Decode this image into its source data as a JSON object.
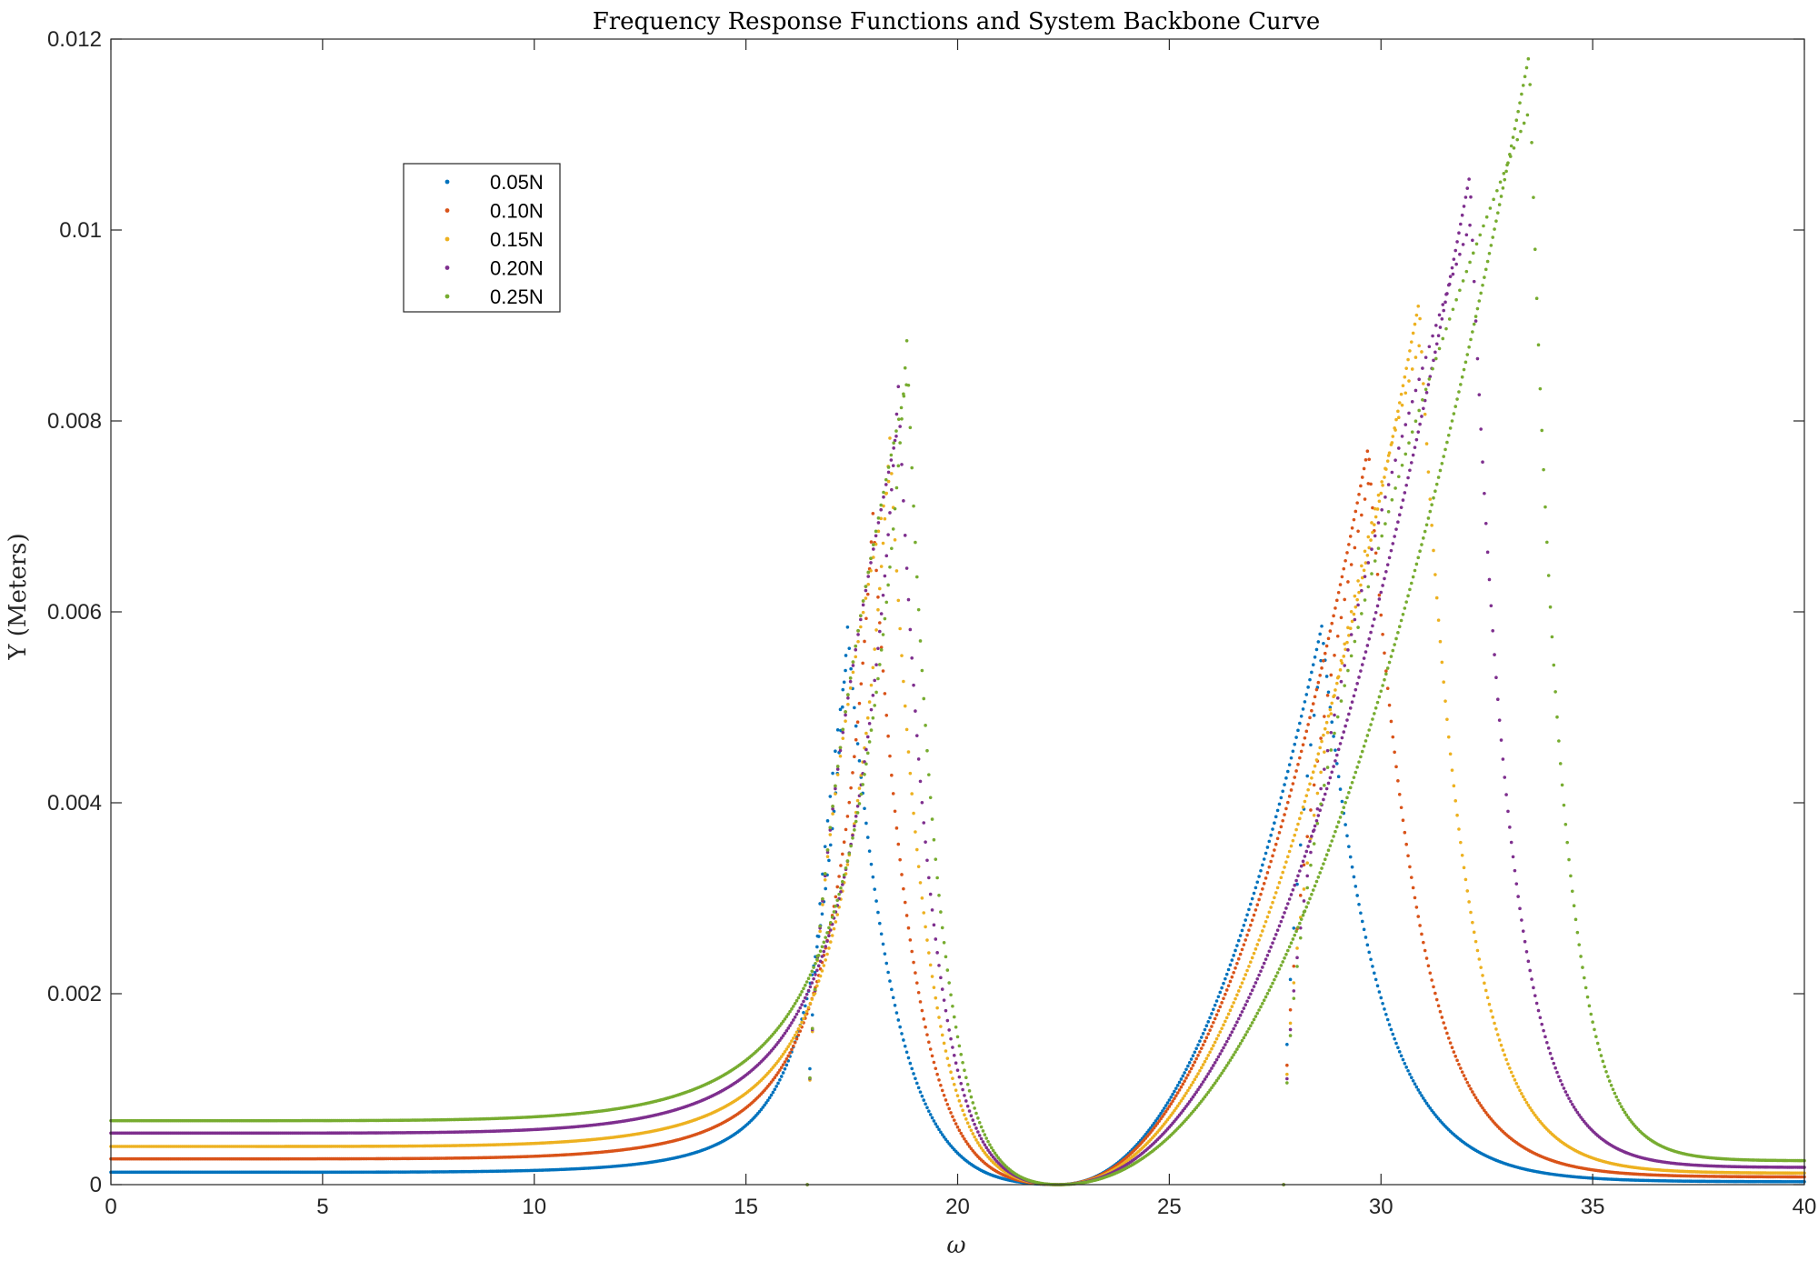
{
  "chart_data": {
    "type": "scatter",
    "title": "Frequency Response Functions and System Backbone Curve",
    "xlabel": "ω",
    "ylabel": "Y (Meters)",
    "xlim": [
      0,
      40
    ],
    "ylim": [
      0,
      0.012
    ],
    "xticks": [
      0,
      5,
      10,
      15,
      20,
      25,
      30,
      35,
      40
    ],
    "xtick_labels": [
      "0",
      "5",
      "10",
      "15",
      "20",
      "25",
      "30",
      "35",
      "40"
    ],
    "yticks": [
      0,
      0.002,
      0.004,
      0.006,
      0.008,
      0.01,
      0.012
    ],
    "ytick_labels": [
      "0",
      "0.002",
      "0.004",
      "0.006",
      "0.008",
      "0.01",
      "0.012"
    ],
    "grid": false,
    "legend_position": "upper-left",
    "model": {
      "description_units": "omega in rad/s, Y in meters",
      "anti_resonance": 22.35,
      "low_frequency_gain_per_newton": 0.00264,
      "first_resonance_linear": 16.45,
      "second_resonance_linear": 27.7
    },
    "series": [
      {
        "name": "0.05N",
        "color": "#0072BD",
        "force": 0.05,
        "static_y": 0.00013,
        "peak1": [
          17.4,
          0.00584
        ],
        "peak2": [
          28.6,
          0.00585
        ],
        "tail_y_at_40": 3e-05
      },
      {
        "name": "0.10N",
        "color": "#D95319",
        "force": 0.1,
        "static_y": 0.00027,
        "peak1": [
          18.0,
          0.00703
        ],
        "peak2": [
          29.7,
          0.00773
        ],
        "tail_y_at_40": 8e-05
      },
      {
        "name": "0.15N",
        "color": "#EDB120",
        "force": 0.15,
        "static_y": 0.0004,
        "peak1": [
          18.4,
          0.00782
        ],
        "peak2": [
          30.9,
          0.00925
        ],
        "tail_y_at_40": 0.00012
      },
      {
        "name": "0.20N",
        "color": "#7E2F8E",
        "force": 0.2,
        "static_y": 0.00054,
        "peak1": [
          18.6,
          0.00836
        ],
        "peak2": [
          32.1,
          0.01058
        ],
        "tail_y_at_40": 0.00018
      },
      {
        "name": "0.25N",
        "color": "#77AC30",
        "force": 0.25,
        "static_y": 0.00067,
        "peak1": [
          18.8,
          0.00884
        ],
        "peak2": [
          33.5,
          0.01184
        ],
        "tail_y_at_40": 0.00025
      }
    ]
  }
}
